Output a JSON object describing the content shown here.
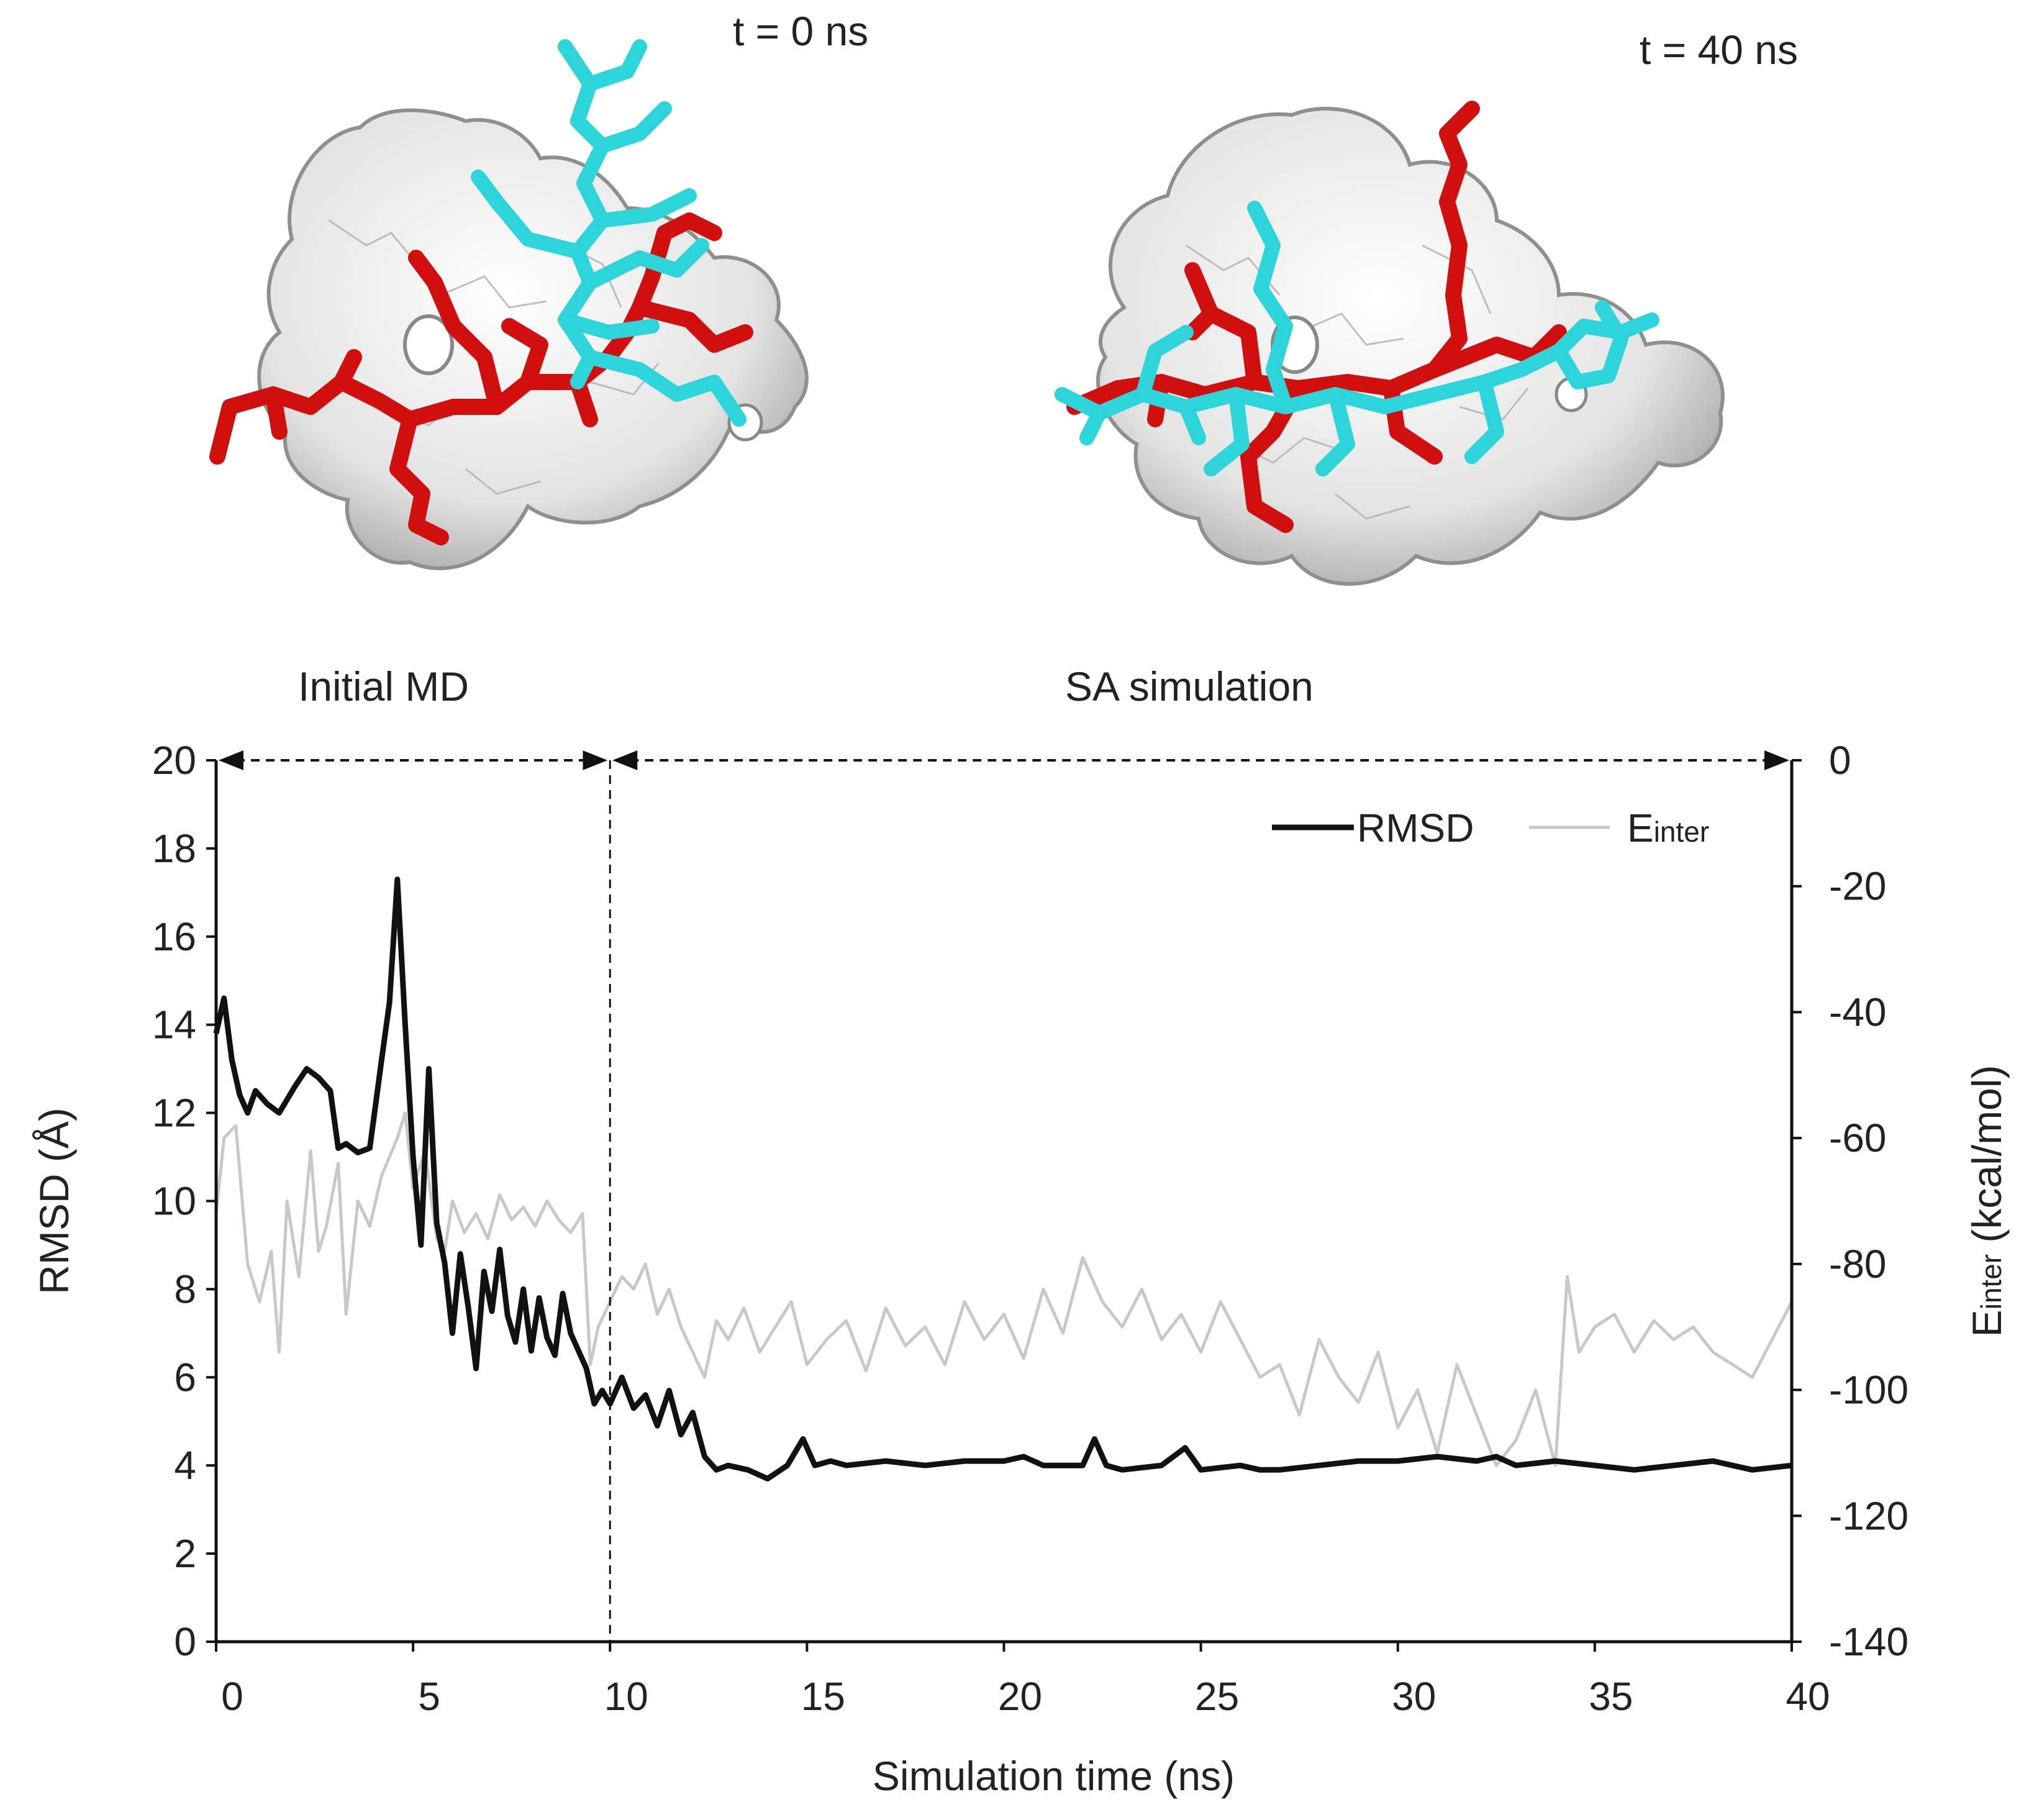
{
  "snapshots": [
    {
      "time_label": "t = 0 ns"
    },
    {
      "time_label": "t = 40 ns"
    }
  ],
  "colors": {
    "surface": "#e4e4e4",
    "surface_edge": "#9a9a9a",
    "ligand_red": "#d10f0f",
    "ligand_cyan": "#2dd4d9",
    "rmsd_line": "#111111",
    "einter_line": "#c8c8c8"
  },
  "chart_data": {
    "type": "line",
    "xlabel": "Simulation time (ns)",
    "ylabel_left": "RMSD (Å)",
    "ylabel_right_main": "E",
    "ylabel_right_sub": "inter",
    "ylabel_right_unit": " (kcal/mol)",
    "xlim": [
      0,
      40
    ],
    "ylim_left": [
      0,
      20
    ],
    "ylim_right": [
      -140,
      0
    ],
    "x_ticks": [
      "0",
      "5",
      "10",
      "15",
      "20",
      "25",
      "30",
      "35",
      "40"
    ],
    "y_ticks_left": [
      "0",
      "2",
      "4",
      "6",
      "8",
      "10",
      "12",
      "14",
      "16",
      "18",
      "20"
    ],
    "y_ticks_right": [
      "-140",
      "-120",
      "-100",
      "-80",
      "-60",
      "-40",
      "-20",
      "0"
    ],
    "phases": [
      {
        "label": "Initial MD",
        "start": 0,
        "end": 10
      },
      {
        "label": "SA simulation",
        "start": 10,
        "end": 40
      }
    ],
    "legend_position": "top-right",
    "grid": false,
    "series": [
      {
        "name": "RMSD",
        "axis": "left",
        "x": [
          0,
          0.2,
          0.4,
          0.6,
          0.8,
          1.0,
          1.3,
          1.6,
          2.0,
          2.3,
          2.6,
          2.9,
          3.1,
          3.3,
          3.6,
          3.9,
          4.2,
          4.4,
          4.6,
          4.8,
          5.0,
          5.2,
          5.4,
          5.6,
          5.8,
          6.0,
          6.2,
          6.4,
          6.6,
          6.8,
          7.0,
          7.2,
          7.4,
          7.6,
          7.8,
          8.0,
          8.2,
          8.4,
          8.6,
          8.8,
          9.0,
          9.2,
          9.4,
          9.6,
          9.8,
          10.0,
          10.3,
          10.6,
          10.9,
          11.2,
          11.5,
          11.8,
          12.1,
          12.4,
          12.7,
          13.0,
          13.5,
          14.0,
          14.5,
          14.9,
          15.2,
          15.6,
          16.0,
          17.0,
          18.0,
          19.0,
          20.0,
          20.5,
          21.0,
          22.0,
          22.3,
          22.6,
          23.0,
          24.0,
          24.6,
          25.0,
          26.0,
          26.5,
          27.0,
          28.0,
          29.0,
          30.0,
          31.0,
          32.0,
          32.5,
          33.0,
          34.0,
          35.0,
          36.0,
          37.0,
          38.0,
          39.0,
          40.0
        ],
        "values": [
          13.8,
          14.6,
          13.2,
          12.4,
          12.0,
          12.5,
          12.2,
          12.0,
          12.6,
          13.0,
          12.8,
          12.5,
          11.2,
          11.3,
          11.1,
          11.2,
          13.2,
          14.5,
          17.3,
          14.0,
          11.0,
          9.0,
          13.0,
          9.5,
          8.6,
          7.0,
          8.8,
          7.6,
          6.2,
          8.4,
          7.5,
          8.9,
          7.4,
          6.8,
          8.0,
          6.6,
          7.8,
          6.9,
          6.5,
          7.9,
          7.0,
          6.6,
          6.2,
          5.4,
          5.7,
          5.4,
          6.0,
          5.3,
          5.6,
          4.9,
          5.7,
          4.7,
          5.2,
          4.2,
          3.9,
          4.0,
          3.9,
          3.7,
          4.0,
          4.6,
          4.0,
          4.1,
          4.0,
          4.1,
          4.0,
          4.1,
          4.1,
          4.2,
          4.0,
          4.0,
          4.6,
          4.0,
          3.9,
          4.0,
          4.4,
          3.9,
          4.0,
          3.9,
          3.9,
          4.0,
          4.1,
          4.1,
          4.2,
          4.1,
          4.2,
          4.0,
          4.1,
          4.0,
          3.9,
          4.0,
          4.1,
          3.9,
          4.0
        ]
      },
      {
        "name": "Einter",
        "name_main": "E",
        "name_sub": "inter",
        "axis": "right",
        "x": [
          0,
          0.2,
          0.5,
          0.8,
          1.1,
          1.4,
          1.6,
          1.8,
          2.1,
          2.4,
          2.6,
          2.8,
          3.1,
          3.3,
          3.6,
          3.9,
          4.2,
          4.6,
          4.8,
          5.0,
          5.3,
          5.6,
          5.8,
          6.0,
          6.3,
          6.6,
          6.9,
          7.2,
          7.5,
          7.8,
          8.1,
          8.4,
          8.7,
          9.0,
          9.3,
          9.5,
          9.7,
          10.0,
          10.3,
          10.6,
          10.9,
          11.2,
          11.5,
          11.8,
          12.1,
          12.4,
          12.7,
          13.0,
          13.4,
          13.8,
          14.2,
          14.6,
          15.0,
          15.5,
          16.0,
          16.5,
          17.0,
          17.5,
          18.0,
          18.5,
          19.0,
          19.5,
          20.0,
          20.5,
          21.0,
          21.5,
          22.0,
          22.5,
          23.0,
          23.5,
          24.0,
          24.5,
          25.0,
          25.5,
          26.0,
          26.5,
          27.0,
          27.5,
          28.0,
          28.5,
          29.0,
          29.5,
          30.0,
          30.5,
          31.0,
          31.5,
          32.0,
          32.5,
          33.0,
          33.5,
          34.0,
          34.3,
          34.6,
          35.0,
          35.5,
          36.0,
          36.5,
          37.0,
          37.5,
          38.0,
          38.5,
          39.0,
          39.5,
          40.0
        ],
        "values": [
          -72,
          -60,
          -58,
          -80,
          -86,
          -78,
          -94,
          -70,
          -82,
          -62,
          -78,
          -74,
          -64,
          -88,
          -70,
          -74,
          -66,
          -60,
          -56,
          -68,
          -62,
          -76,
          -78,
          -70,
          -75,
          -72,
          -76,
          -69,
          -73,
          -71,
          -74,
          -70,
          -73,
          -75,
          -72,
          -96,
          -90,
          -86,
          -82,
          -84,
          -80,
          -88,
          -84,
          -90,
          -94,
          -98,
          -89,
          -92,
          -87,
          -94,
          -90,
          -86,
          -96,
          -92,
          -89,
          -97,
          -87,
          -93,
          -90,
          -96,
          -86,
          -92,
          -88,
          -95,
          -84,
          -91,
          -79,
          -86,
          -90,
          -84,
          -92,
          -88,
          -94,
          -86,
          -92,
          -98,
          -96,
          -104,
          -92,
          -98,
          -102,
          -94,
          -106,
          -100,
          -110,
          -96,
          -104,
          -112,
          -108,
          -100,
          -112,
          -82,
          -94,
          -90,
          -88,
          -94,
          -89,
          -92,
          -90,
          -94,
          -96,
          -98,
          -92,
          -86
        ]
      }
    ]
  }
}
